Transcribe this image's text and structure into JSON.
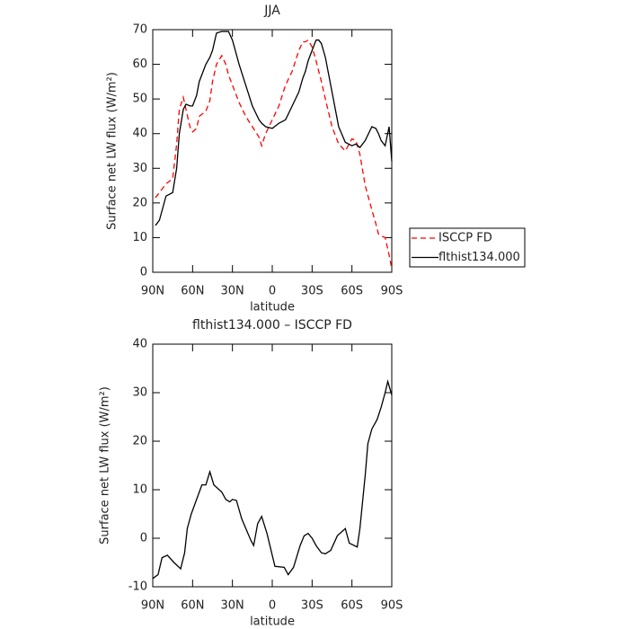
{
  "chart_data": [
    {
      "type": "line",
      "title": "JJA",
      "xlabel": "latitude",
      "ylabel": "Surface net LW flux (W/m²)",
      "x": [
        88,
        85,
        80,
        75,
        72,
        70,
        67,
        65,
        62,
        60,
        57,
        55,
        50,
        47,
        45,
        42,
        38,
        35,
        33,
        30,
        25,
        20,
        15,
        10,
        8,
        5,
        0,
        -5,
        -10,
        -15,
        -20,
        -23,
        -25,
        -27,
        -30,
        -33,
        -35,
        -37,
        -40,
        -45,
        -50,
        -55,
        -60,
        -63,
        -66,
        -70,
        -75,
        -78,
        -80,
        -82,
        -85,
        -88,
        -90
      ],
      "series": [
        {
          "name": "ISCCP FD",
          "color": "#ff0000",
          "linestyle": "dashed",
          "values": [
            21.5,
            23,
            25.5,
            27,
            37,
            47,
            50.5,
            47,
            42,
            40.5,
            41.5,
            45,
            46.5,
            49.5,
            55,
            60,
            62.5,
            60,
            57,
            54,
            49,
            45,
            42,
            39,
            36.5,
            40,
            44,
            48,
            54,
            58,
            64,
            66.5,
            66.5,
            67,
            65,
            61,
            58,
            55,
            50,
            42,
            37,
            35,
            38.5,
            38,
            34,
            25,
            18,
            14,
            11,
            10.5,
            10,
            5,
            1
          ]
        },
        {
          "name": "flthist134.000",
          "color": "#000000",
          "linestyle": "solid",
          "values": [
            13.5,
            15,
            22,
            23,
            30,
            40,
            47,
            48.5,
            48,
            48,
            51,
            55,
            60,
            62,
            64,
            69,
            69.5,
            69.5,
            69.5,
            67,
            60,
            54,
            48,
            44,
            43,
            42,
            41.5,
            43,
            44,
            48,
            52,
            56,
            58,
            61,
            64,
            67,
            67,
            66,
            62,
            52,
            42,
            37.5,
            36.5,
            37,
            36,
            38,
            42,
            41.5,
            40,
            38,
            36.5,
            42,
            32
          ]
        }
      ],
      "xlim": [
        90,
        -90
      ],
      "xticks": [
        {
          "value": 90,
          "label": "90N"
        },
        {
          "value": 60,
          "label": "60N"
        },
        {
          "value": 30,
          "label": "30N"
        },
        0,
        {
          "value": -30,
          "label": "30S"
        },
        {
          "value": -60,
          "label": "60S"
        },
        {
          "value": -90,
          "label": "90S"
        }
      ],
      "ylim": [
        0,
        70
      ],
      "yticks": [
        0,
        10,
        20,
        30,
        40,
        50,
        60,
        70
      ],
      "legend": "right"
    },
    {
      "type": "line",
      "title": "flthist134.000 – ISCCP FD",
      "xlabel": "latitude",
      "ylabel": "Surface net LW flux (W/m²)",
      "x": [
        90,
        86,
        83,
        79,
        74,
        69,
        66,
        64,
        61,
        53,
        50,
        47,
        44,
        38,
        35,
        32,
        30,
        27,
        23,
        16,
        14,
        11,
        8,
        4,
        -2,
        -9,
        -12,
        -16,
        -21,
        -24,
        -27,
        -30,
        -33,
        -37,
        -40,
        -44,
        -49,
        -55,
        -58,
        -64,
        -66,
        -70,
        -72,
        -75,
        -79,
        -82,
        -85,
        -87,
        -90
      ],
      "series": [
        {
          "color": "#000000",
          "linestyle": "solid",
          "values": [
            -8.3,
            -7.5,
            -4,
            -3.5,
            -5,
            -6.3,
            -3,
            2,
            5,
            11,
            11,
            13.7,
            11,
            9.5,
            8,
            7.5,
            8,
            7.8,
            4,
            -0.5,
            -1.5,
            3,
            4.5,
            1,
            -5.8,
            -6,
            -7.5,
            -6,
            -1.5,
            0.5,
            1,
            0,
            -1.5,
            -3,
            -3.2,
            -2.5,
            0.5,
            2,
            -1,
            -1.8,
            2,
            13,
            19.5,
            22.5,
            24.5,
            27,
            30,
            32.3,
            29.5
          ]
        }
      ],
      "xlim": [
        90,
        -90
      ],
      "xticks": [
        {
          "value": 90,
          "label": "90N"
        },
        {
          "value": 60,
          "label": "60N"
        },
        {
          "value": 30,
          "label": "30N"
        },
        0,
        {
          "value": -30,
          "label": "30S"
        },
        {
          "value": -60,
          "label": "60S"
        },
        {
          "value": -90,
          "label": "90S"
        }
      ],
      "ylim": [
        -10,
        40
      ],
      "yticks": [
        -10,
        0,
        10,
        20,
        30,
        40
      ]
    }
  ]
}
